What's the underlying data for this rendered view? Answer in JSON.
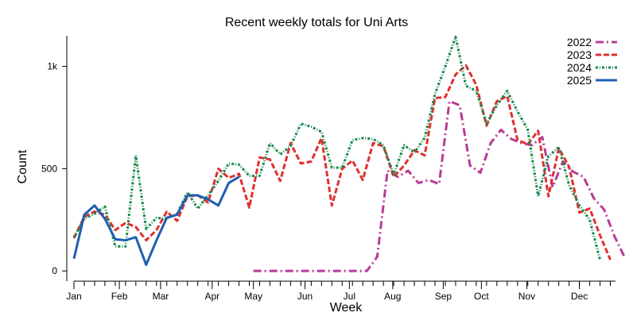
{
  "chart_data": {
    "type": "line",
    "title": "Recent weekly totals for Uni Arts",
    "xlabel": "Week",
    "ylabel": "Count",
    "legend_position": "top-right",
    "x_ticks": [
      "Jan",
      "Feb",
      "Mar",
      "Apr",
      "May",
      "Jun",
      "Jul",
      "Aug",
      "Sep",
      "Oct",
      "Nov",
      "Dec"
    ],
    "x_tick_weeks": [
      1,
      5.4,
      9.4,
      14.4,
      18.4,
      23.4,
      27.7,
      31.9,
      36.8,
      40.5,
      44.9,
      50
    ],
    "y_ticks": [
      0,
      500,
      1000
    ],
    "y_tick_labels": [
      "0",
      "500",
      "1k"
    ],
    "xlim": [
      1,
      53.5
    ],
    "ylim": [
      -50,
      1150
    ],
    "series": [
      {
        "name": "2022",
        "color": "#b83c96",
        "dash": "10,4,2,4",
        "start_week": 18.4,
        "values": [
          0,
          0,
          0,
          0,
          0,
          0,
          0,
          0,
          0,
          0,
          0,
          0,
          70,
          490,
          460,
          490,
          430,
          445,
          425,
          830,
          810,
          515,
          480,
          625,
          690,
          645,
          625,
          615,
          655,
          410,
          535,
          485,
          460,
          355,
          300,
          170,
          65
        ]
      },
      {
        "name": "2023",
        "color": "#e03030",
        "dash": "7,3",
        "start_week": 1,
        "values": [
          160,
          265,
          290,
          275,
          200,
          235,
          215,
          150,
          200,
          290,
          245,
          365,
          370,
          335,
          500,
          455,
          475,
          310,
          555,
          545,
          440,
          625,
          525,
          535,
          650,
          320,
          500,
          540,
          445,
          625,
          610,
          460,
          515,
          590,
          565,
          845,
          850,
          960,
          1005,
          910,
          710,
          830,
          855,
          640,
          620,
          685,
          365,
          600,
          510,
          285,
          305,
          175,
          55
        ]
      },
      {
        "name": "2024",
        "color": "#168a4c",
        "dash": "3,2,1,2",
        "start_week": 1,
        "values": [
          165,
          255,
          280,
          315,
          120,
          120,
          565,
          205,
          260,
          255,
          280,
          385,
          305,
          370,
          440,
          525,
          520,
          465,
          465,
          625,
          570,
          610,
          720,
          705,
          680,
          505,
          505,
          640,
          650,
          645,
          615,
          470,
          615,
          580,
          650,
          865,
          1000,
          1145,
          905,
          880,
          720,
          810,
          880,
          780,
          690,
          365,
          560,
          605,
          420,
          320,
          250,
          55
        ]
      },
      {
        "name": "2025",
        "color": "#1f5fb0",
        "dash": "",
        "start_week": 1,
        "values": [
          60,
          275,
          320,
          255,
          155,
          150,
          165,
          30,
          150,
          260,
          275,
          370,
          370,
          350,
          320,
          430,
          460
        ]
      }
    ]
  }
}
